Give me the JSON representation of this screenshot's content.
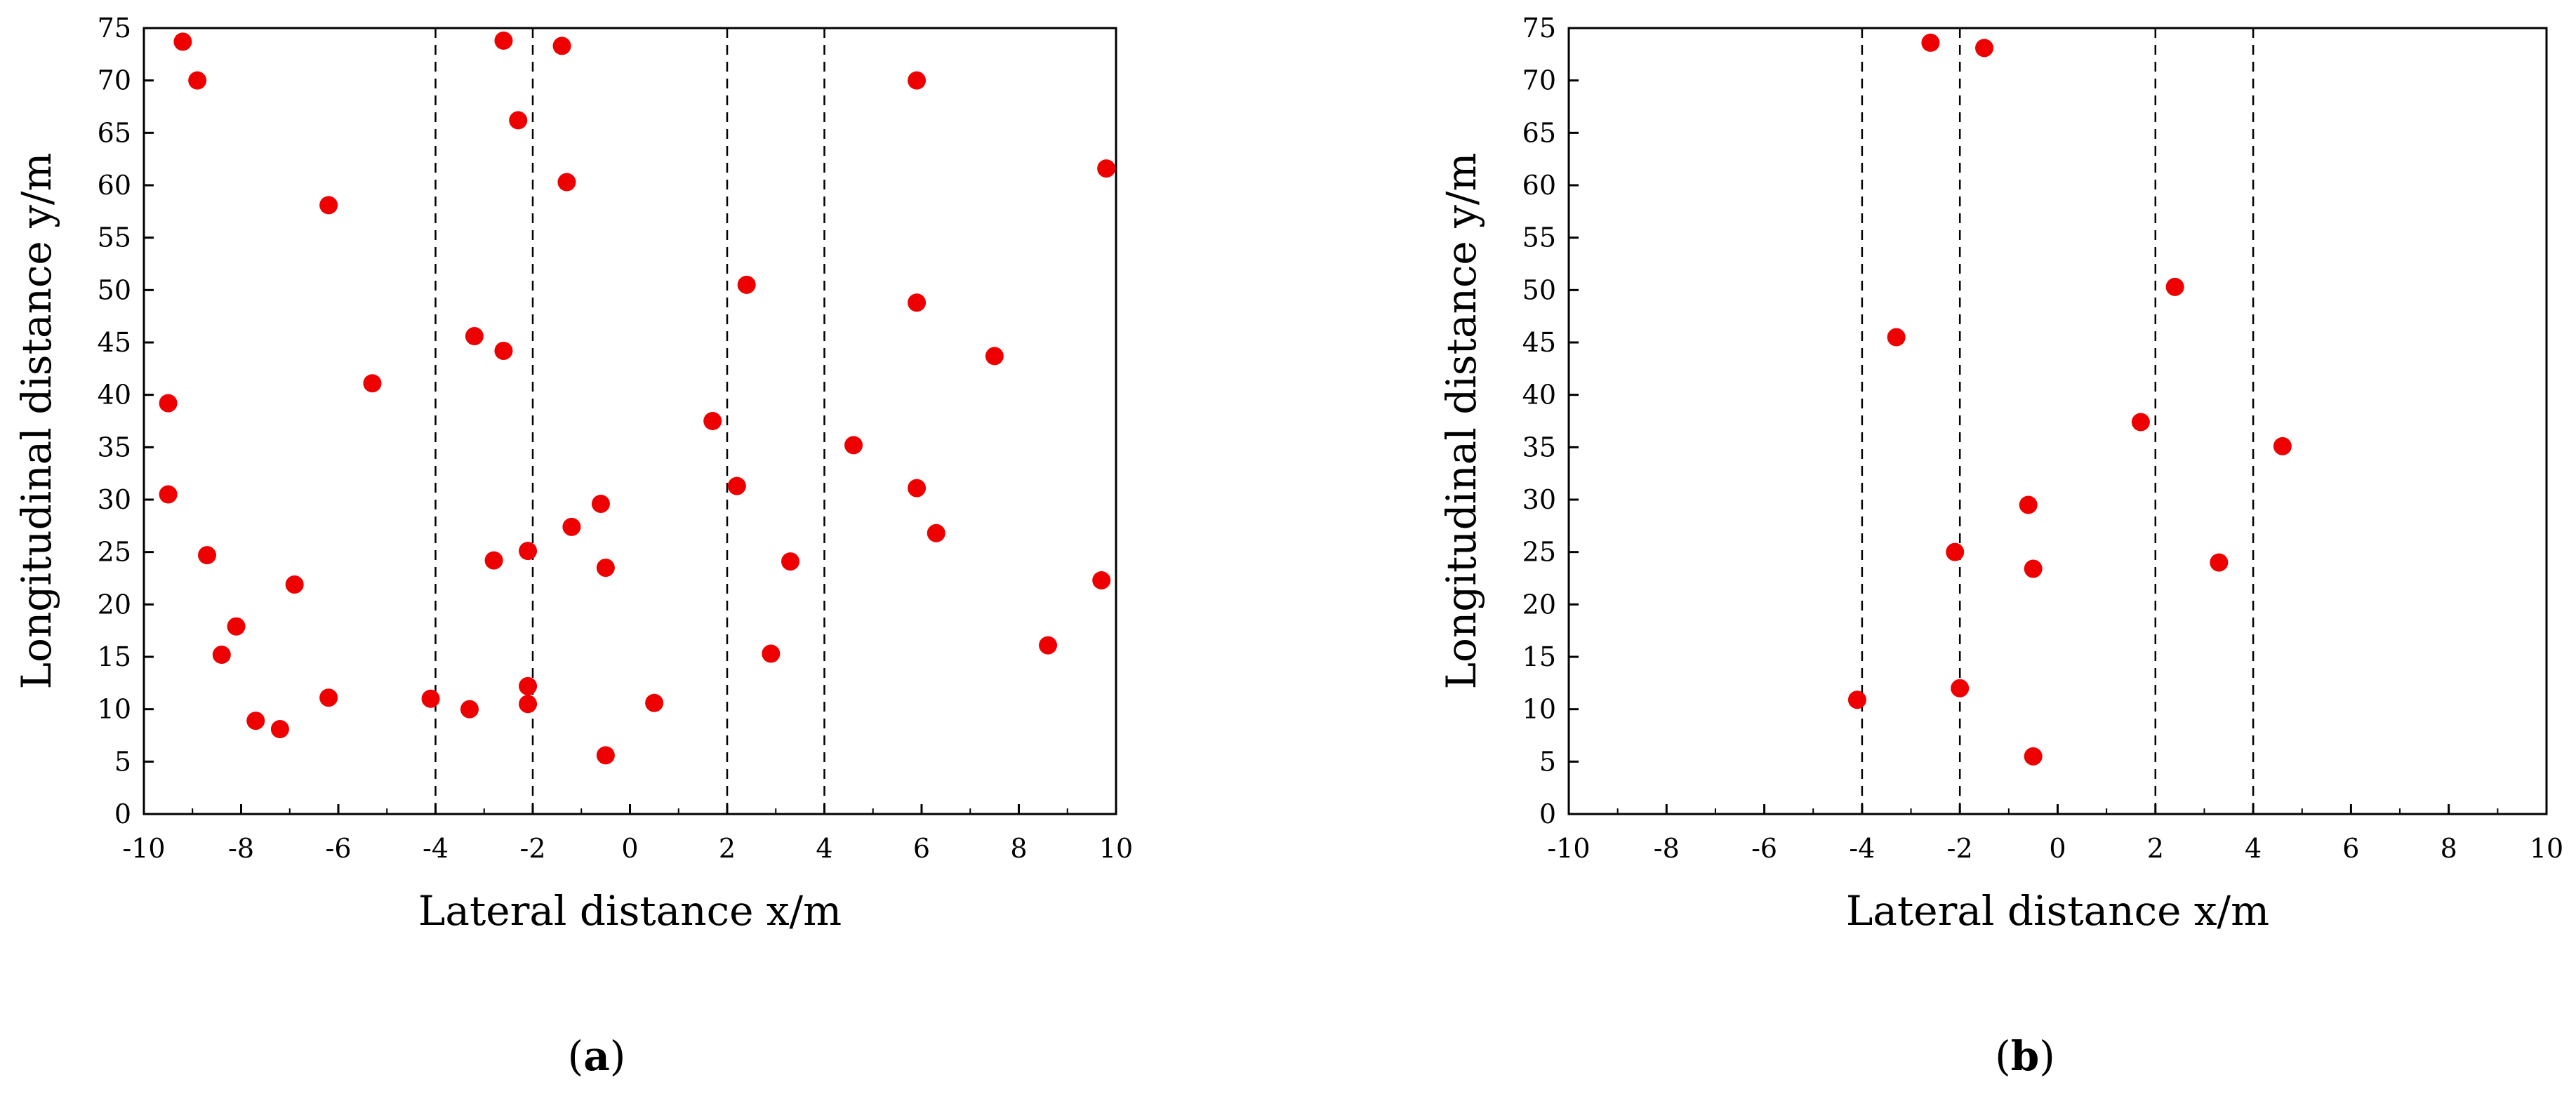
{
  "chart_data": [
    {
      "type": "scatter",
      "caption_open": "(",
      "caption_letter": "a",
      "caption_close": ")",
      "xlabel": "Lateral distance x/m",
      "ylabel": "Longitudinal distance y/m",
      "xlim": [
        -10,
        10
      ],
      "ylim": [
        0,
        75
      ],
      "xticks": [
        -10,
        -8,
        -6,
        -4,
        -2,
        0,
        2,
        4,
        6,
        8,
        10
      ],
      "yticks": [
        0,
        5,
        10,
        15,
        20,
        25,
        30,
        35,
        40,
        45,
        50,
        55,
        60,
        65,
        70,
        75
      ],
      "vlines": [
        -4,
        -2,
        2,
        4
      ],
      "marker_color": "#ee0000",
      "points": [
        [
          -9.2,
          73.7
        ],
        [
          -8.9,
          70.0
        ],
        [
          -2.6,
          73.8
        ],
        [
          -1.4,
          73.3
        ],
        [
          -2.3,
          66.2
        ],
        [
          -1.3,
          60.3
        ],
        [
          5.9,
          70.0
        ],
        [
          9.8,
          61.6
        ],
        [
          -6.2,
          58.1
        ],
        [
          2.4,
          50.5
        ],
        [
          5.9,
          48.8
        ],
        [
          -3.2,
          45.6
        ],
        [
          -2.6,
          44.2
        ],
        [
          7.5,
          43.7
        ],
        [
          -5.3,
          41.1
        ],
        [
          -9.5,
          39.2
        ],
        [
          1.7,
          37.5
        ],
        [
          4.6,
          35.2
        ],
        [
          -9.5,
          30.5
        ],
        [
          2.2,
          31.3
        ],
        [
          5.9,
          31.1
        ],
        [
          -0.6,
          29.6
        ],
        [
          -1.2,
          27.4
        ],
        [
          6.3,
          26.8
        ],
        [
          -8.7,
          24.7
        ],
        [
          -2.8,
          24.2
        ],
        [
          -2.1,
          25.1
        ],
        [
          -0.5,
          23.5
        ],
        [
          3.3,
          24.1
        ],
        [
          -6.9,
          21.9
        ],
        [
          9.7,
          22.3
        ],
        [
          -8.1,
          17.9
        ],
        [
          -8.4,
          15.2
        ],
        [
          2.9,
          15.3
        ],
        [
          8.6,
          16.1
        ],
        [
          -6.2,
          11.1
        ],
        [
          -4.1,
          11.0
        ],
        [
          -3.3,
          10.0
        ],
        [
          -2.1,
          12.2
        ],
        [
          -2.1,
          10.5
        ],
        [
          0.5,
          10.6
        ],
        [
          -7.7,
          8.9
        ],
        [
          -7.2,
          8.1
        ],
        [
          -0.5,
          5.6
        ]
      ]
    },
    {
      "type": "scatter",
      "caption_open": "(",
      "caption_letter": "b",
      "caption_close": ")",
      "xlabel": "Lateral distance x/m",
      "ylabel": "Longitudinal distance y/m",
      "xlim": [
        -10,
        10
      ],
      "ylim": [
        0,
        75
      ],
      "xticks": [
        -10,
        -8,
        -6,
        -4,
        -2,
        0,
        2,
        4,
        6,
        8,
        10
      ],
      "yticks": [
        0,
        5,
        10,
        15,
        20,
        25,
        30,
        35,
        40,
        45,
        50,
        55,
        60,
        65,
        70,
        75
      ],
      "vlines": [
        -4,
        -2,
        2,
        4
      ],
      "marker_color": "#ee0000",
      "points": [
        [
          -2.6,
          73.6
        ],
        [
          -1.5,
          73.1
        ],
        [
          2.4,
          50.3
        ],
        [
          -3.3,
          45.5
        ],
        [
          1.7,
          37.4
        ],
        [
          4.6,
          35.1
        ],
        [
          -0.6,
          29.5
        ],
        [
          -2.1,
          25.0
        ],
        [
          -0.5,
          23.4
        ],
        [
          3.3,
          24.0
        ],
        [
          -4.1,
          10.9
        ],
        [
          -2.0,
          12.0
        ],
        [
          -0.5,
          5.5
        ]
      ]
    }
  ]
}
